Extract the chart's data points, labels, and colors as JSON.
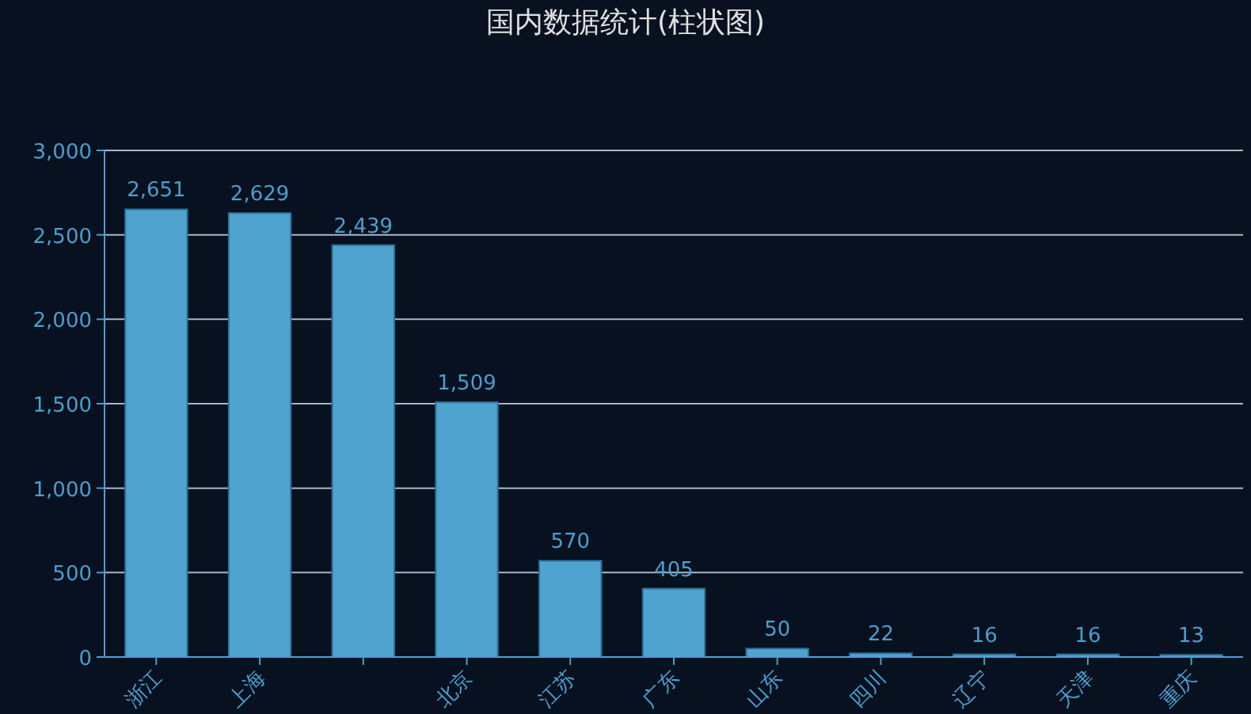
{
  "chart_data": {
    "type": "bar",
    "title": "国内数据统计(柱状图)",
    "categories": [
      "浙江",
      "上海",
      null,
      "北京",
      "江苏",
      "广东",
      "山东",
      "四川",
      "辽宁",
      "天津",
      "重庆"
    ],
    "values": [
      2651,
      2629,
      2439,
      1509,
      570,
      405,
      50,
      22,
      16,
      16,
      13
    ],
    "value_labels": [
      "2,651",
      "2,629",
      "2,439",
      "1,509",
      "570",
      "405",
      "50",
      "22",
      "16",
      "16",
      "13"
    ],
    "color": "#4fa3cf",
    "ylim": [
      0,
      3000
    ],
    "yticks": [
      0,
      500,
      {
        "value": 1000,
        "label": "1,000"
      },
      {
        "value": 1500,
        "label": "1,500"
      },
      {
        "value": 2000,
        "label": "2,000"
      },
      {
        "value": 2500,
        "label": "2,500"
      },
      {
        "value": 3000,
        "label": "3,000"
      }
    ],
    "grid": "y"
  }
}
